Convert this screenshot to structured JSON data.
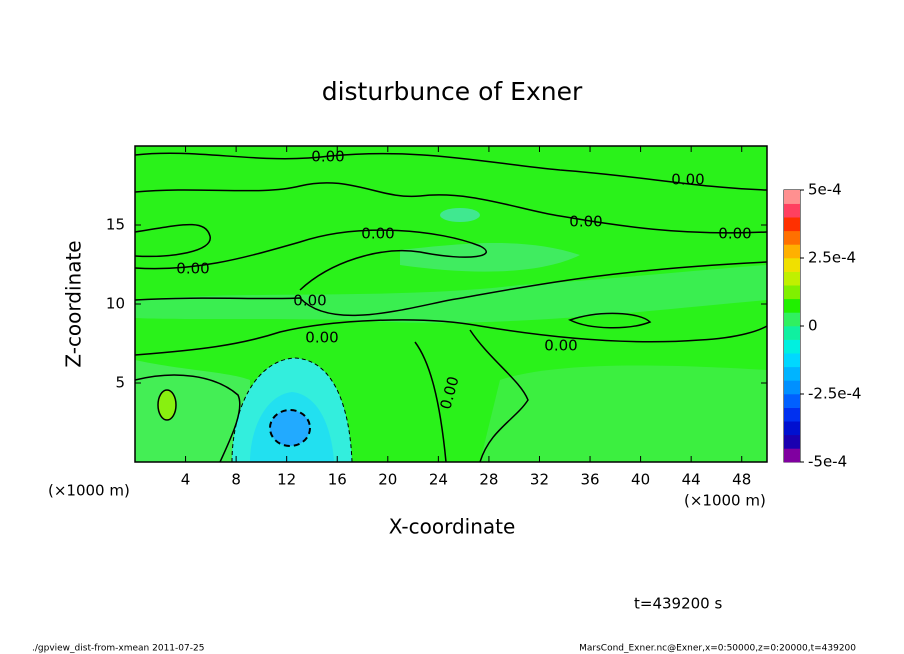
{
  "chart_data": {
    "type": "contour",
    "title": "disturbunce of Exner",
    "xlabel": "X-coordinate",
    "ylabel": "Z-coordinate",
    "x_unit": "(×1000 m)",
    "xlim": [
      0,
      50
    ],
    "xticks": [
      4,
      8,
      12,
      16,
      20,
      24,
      28,
      32,
      36,
      40,
      44,
      48
    ],
    "ylim": [
      0,
      20
    ],
    "yticks": [
      5,
      10,
      15
    ],
    "colorbar_lim": [
      -0.0005,
      0.0005
    ],
    "colorbar_ticks": [
      {
        "value": 0.0005,
        "label": "5e-4"
      },
      {
        "value": 0.00025,
        "label": "2.5e-4"
      },
      0,
      {
        "value": -0.00025,
        "label": "-2.5e-4"
      },
      {
        "value": -0.0005,
        "label": "-5e-4"
      }
    ],
    "colorbar_colors": [
      "#8000a0",
      "#1a00b0",
      "#0010d0",
      "#0030f0",
      "#0060ff",
      "#0090ff",
      "#00b4ff",
      "#00d8ff",
      "#00f0e0",
      "#10f0a0",
      "#30f060",
      "#20f000",
      "#80f000",
      "#c0f000",
      "#f0e000",
      "#ffb000",
      "#ff7000",
      "#ff3000",
      "#ff4060",
      "#ff9090"
    ],
    "contour_labels": [
      "0.00",
      "0.00",
      "0.00",
      "0.00",
      "0.00",
      "0.00",
      "0.00",
      "0.00",
      "0.00",
      "0.00"
    ],
    "time_label": "t=439200 s",
    "footer_left": "./gpview_dist-from-xmean  2011-07-25",
    "footer_right": "MarsCond_Exner.nc@Exner,x=0:50000,z=0:20000,t=439200"
  }
}
